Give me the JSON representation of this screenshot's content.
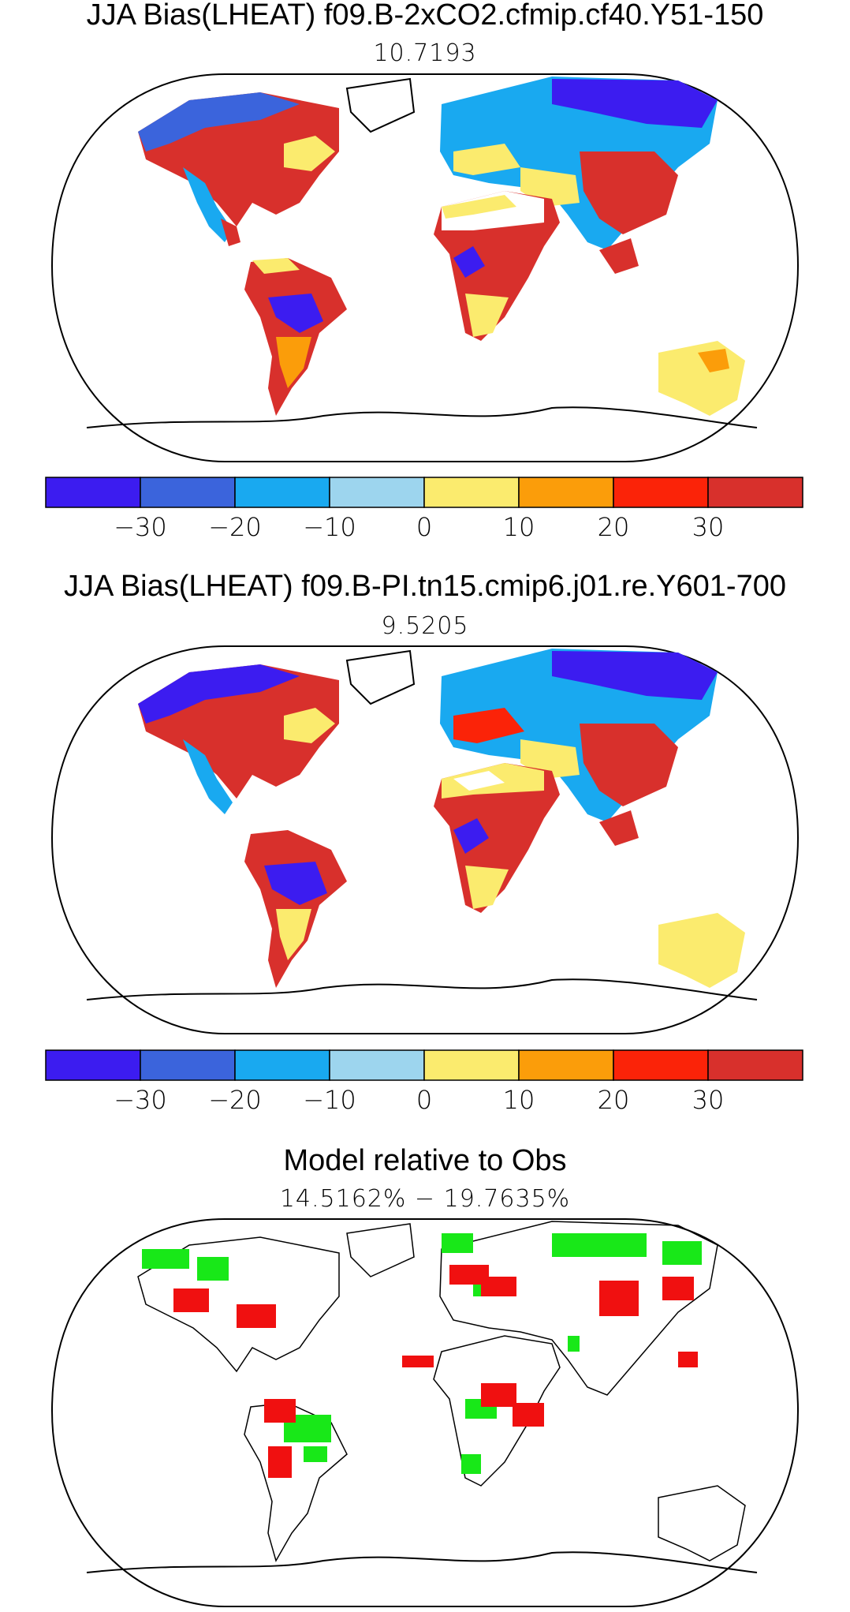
{
  "panels": [
    {
      "title": "JJA Bias(LHEAT) f09.B-2xCO2.cfmip.cf40.Y51-150",
      "subtitle": "10.7193"
    },
    {
      "title": "JJA Bias(LHEAT) f09.B-PI.tn15.cmip6.j01.re.Y601-700",
      "subtitle": "9.5205"
    },
    {
      "title": "Model relative to Obs",
      "subtitle": "14.5162% − 19.7635%"
    }
  ],
  "colorbar": {
    "colors": [
      "#3c1cf0",
      "#3b64dc",
      "#19a9f0",
      "#9dd5ee",
      "#fbeb6e",
      "#fb9d0a",
      "#fb2308",
      "#d8302c"
    ],
    "tick_labels": [
      "−30",
      "−20",
      "−10",
      "0",
      "10",
      "20",
      "30"
    ]
  },
  "map_colors": {
    "land_outline": "#000000",
    "better": "#18e818",
    "worse": "#f01010"
  }
}
